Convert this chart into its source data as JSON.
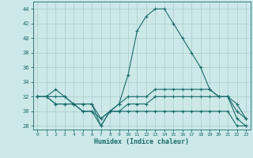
{
  "xlabel": "Humidex (Indice chaleur)",
  "xlim": [
    -0.5,
    23.5
  ],
  "ylim": [
    27.5,
    45
  ],
  "yticks": [
    28,
    30,
    32,
    34,
    36,
    38,
    40,
    42,
    44
  ],
  "xticks": [
    0,
    1,
    2,
    3,
    4,
    5,
    6,
    7,
    8,
    9,
    10,
    11,
    12,
    13,
    14,
    15,
    16,
    17,
    18,
    19,
    20,
    21,
    22,
    23
  ],
  "background_color": "#cce8e8",
  "grid_color": "#aacccc",
  "line_color": "#1a6b6b",
  "line1": [
    32,
    32,
    33,
    32,
    31,
    30,
    30,
    28,
    30,
    31,
    35,
    41,
    43,
    44,
    44,
    42,
    40,
    38,
    36,
    33,
    32,
    32,
    31,
    29
  ],
  "line2": [
    32,
    32,
    32,
    32,
    31,
    31,
    31,
    29,
    30,
    31,
    32,
    32,
    32,
    33,
    33,
    33,
    33,
    33,
    33,
    33,
    32,
    32,
    30,
    29
  ],
  "line3": [
    32,
    32,
    31,
    31,
    31,
    31,
    31,
    28,
    30,
    30,
    30,
    30,
    30,
    30,
    30,
    30,
    30,
    30,
    30,
    30,
    30,
    30,
    28,
    28
  ],
  "line4": [
    32,
    32,
    31,
    31,
    31,
    30,
    30,
    29,
    30,
    30,
    31,
    31,
    31,
    32,
    32,
    32,
    32,
    32,
    32,
    32,
    32,
    32,
    29,
    28
  ]
}
